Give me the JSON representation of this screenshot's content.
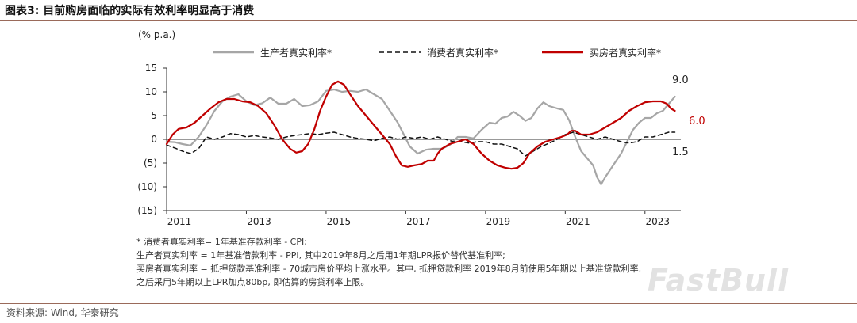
{
  "header": {
    "title": "图表3:   目前购房面临的实际有效利率明显高于消费"
  },
  "notes": [
    "* 消费者真实利率= 1年基准存款利率 - CPI;",
    "  生产者真实利率 = 1年基准借款利率 - PPI, 其中2019年8月之后用1年期LPR报价替代基准利率;",
    "  买房者真实利率 = 抵押贷款基准利率 - 70城市房价平均上涨水平。其中, 抵押贷款利率 2019年8月前使用5年期以上基准贷款利率,",
    "  之后采用5年期以上LPR加点80bp, 即估算的房贷利率上限。"
  ],
  "source": "资料来源: Wind, 华泰研究",
  "watermark": "FastBull",
  "chart_data": {
    "type": "line",
    "unit_label": "(% p.a.)",
    "ylim": [
      -15,
      15
    ],
    "yticks": [
      15,
      10,
      5,
      0,
      -5,
      -10,
      -15
    ],
    "ytick_labels": [
      "15",
      "10",
      "5",
      "0",
      "(5)",
      "(10)",
      "(15)"
    ],
    "xlim": [
      2011,
      2023.9
    ],
    "xticks": [
      2011,
      2013,
      2015,
      2017,
      2019,
      2021,
      2023
    ],
    "xtick_labels": [
      "2011",
      "2013",
      "2015",
      "2017",
      "2019",
      "2021",
      "2023"
    ],
    "legend_position": "top",
    "series": [
      {
        "name": "生产者真实利率*",
        "color": "#a6a6a6",
        "dash": "solid",
        "end_label": "9.0",
        "end_label_color": "#222222",
        "points": [
          [
            2011.0,
            -0.5
          ],
          [
            2011.2,
            -0.6
          ],
          [
            2011.4,
            -1.0
          ],
          [
            2011.6,
            -1.3
          ],
          [
            2011.8,
            0.5
          ],
          [
            2012.0,
            3.0
          ],
          [
            2012.2,
            6.0
          ],
          [
            2012.4,
            8.0
          ],
          [
            2012.6,
            9.0
          ],
          [
            2012.8,
            9.5
          ],
          [
            2013.0,
            8.0
          ],
          [
            2013.2,
            7.2
          ],
          [
            2013.4,
            7.6
          ],
          [
            2013.6,
            8.8
          ],
          [
            2013.8,
            7.5
          ],
          [
            2014.0,
            7.5
          ],
          [
            2014.2,
            8.5
          ],
          [
            2014.4,
            7.0
          ],
          [
            2014.6,
            7.2
          ],
          [
            2014.8,
            8.0
          ],
          [
            2015.0,
            10.2
          ],
          [
            2015.2,
            10.5
          ],
          [
            2015.4,
            10.0
          ],
          [
            2015.6,
            10.2
          ],
          [
            2015.8,
            10.0
          ],
          [
            2016.0,
            10.5
          ],
          [
            2016.2,
            9.5
          ],
          [
            2016.4,
            8.5
          ],
          [
            2016.6,
            6.0
          ],
          [
            2016.8,
            3.5
          ],
          [
            2016.95,
            1.0
          ],
          [
            2017.1,
            -1.5
          ],
          [
            2017.3,
            -3.0
          ],
          [
            2017.5,
            -2.2
          ],
          [
            2017.7,
            -2.0
          ],
          [
            2017.9,
            -2.0
          ],
          [
            2018.1,
            -1.2
          ],
          [
            2018.3,
            0.5
          ],
          [
            2018.5,
            0.5
          ],
          [
            2018.7,
            0.2
          ],
          [
            2018.9,
            2.0
          ],
          [
            2019.1,
            3.5
          ],
          [
            2019.25,
            3.3
          ],
          [
            2019.4,
            4.5
          ],
          [
            2019.55,
            4.8
          ],
          [
            2019.7,
            5.8
          ],
          [
            2019.85,
            5.0
          ],
          [
            2020.0,
            3.9
          ],
          [
            2020.15,
            4.5
          ],
          [
            2020.3,
            6.5
          ],
          [
            2020.45,
            7.8
          ],
          [
            2020.6,
            7.0
          ],
          [
            2020.8,
            6.5
          ],
          [
            2020.95,
            6.2
          ],
          [
            2021.1,
            4.0
          ],
          [
            2021.25,
            0.5
          ],
          [
            2021.4,
            -2.5
          ],
          [
            2021.55,
            -4.0
          ],
          [
            2021.7,
            -5.5
          ],
          [
            2021.8,
            -8.0
          ],
          [
            2021.9,
            -9.5
          ],
          [
            2022.0,
            -8.0
          ],
          [
            2022.2,
            -5.5
          ],
          [
            2022.4,
            -3.0
          ],
          [
            2022.55,
            -0.5
          ],
          [
            2022.7,
            2.0
          ],
          [
            2022.85,
            3.5
          ],
          [
            2023.0,
            4.5
          ],
          [
            2023.15,
            4.5
          ],
          [
            2023.3,
            5.5
          ],
          [
            2023.45,
            6.0
          ],
          [
            2023.6,
            7.5
          ],
          [
            2023.75,
            9.0
          ]
        ]
      },
      {
        "name": "消费者真实利率*",
        "color": "#111111",
        "dash": "dashed",
        "end_label": "1.5",
        "end_label_color": "#222222",
        "points": [
          [
            2011.0,
            -1.2
          ],
          [
            2011.2,
            -1.8
          ],
          [
            2011.4,
            -2.5
          ],
          [
            2011.6,
            -3.0
          ],
          [
            2011.8,
            -2.0
          ],
          [
            2012.0,
            0.5
          ],
          [
            2012.2,
            0.0
          ],
          [
            2012.4,
            0.5
          ],
          [
            2012.6,
            1.2
          ],
          [
            2012.8,
            1.0
          ],
          [
            2013.0,
            0.5
          ],
          [
            2013.2,
            0.8
          ],
          [
            2013.4,
            0.5
          ],
          [
            2013.6,
            0.3
          ],
          [
            2013.8,
            0.0
          ],
          [
            2014.0,
            0.5
          ],
          [
            2014.2,
            0.8
          ],
          [
            2014.4,
            1.0
          ],
          [
            2014.6,
            1.2
          ],
          [
            2014.8,
            1.0
          ],
          [
            2015.0,
            1.3
          ],
          [
            2015.2,
            1.5
          ],
          [
            2015.4,
            1.0
          ],
          [
            2015.6,
            0.5
          ],
          [
            2015.8,
            0.2
          ],
          [
            2016.0,
            0.0
          ],
          [
            2016.2,
            -0.3
          ],
          [
            2016.4,
            0.2
          ],
          [
            2016.6,
            0.5
          ],
          [
            2016.8,
            0.0
          ],
          [
            2017.0,
            0.5
          ],
          [
            2017.2,
            0.2
          ],
          [
            2017.4,
            0.5
          ],
          [
            2017.6,
            0.0
          ],
          [
            2017.8,
            0.5
          ],
          [
            2018.0,
            0.0
          ],
          [
            2018.2,
            -0.5
          ],
          [
            2018.4,
            -0.5
          ],
          [
            2018.6,
            -0.8
          ],
          [
            2018.8,
            -0.5
          ],
          [
            2019.0,
            -0.5
          ],
          [
            2019.2,
            -1.0
          ],
          [
            2019.4,
            -1.0
          ],
          [
            2019.6,
            -1.5
          ],
          [
            2019.8,
            -2.0
          ],
          [
            2020.0,
            -3.5
          ],
          [
            2020.2,
            -2.5
          ],
          [
            2020.4,
            -1.5
          ],
          [
            2020.6,
            -0.8
          ],
          [
            2020.8,
            0.0
          ],
          [
            2021.0,
            1.0
          ],
          [
            2021.2,
            1.5
          ],
          [
            2021.4,
            1.0
          ],
          [
            2021.6,
            0.5
          ],
          [
            2021.8,
            0.0
          ],
          [
            2022.0,
            0.5
          ],
          [
            2022.2,
            0.0
          ],
          [
            2022.4,
            -0.5
          ],
          [
            2022.6,
            -0.8
          ],
          [
            2022.8,
            -0.5
          ],
          [
            2023.0,
            0.5
          ],
          [
            2023.2,
            0.5
          ],
          [
            2023.4,
            1.0
          ],
          [
            2023.6,
            1.5
          ],
          [
            2023.75,
            1.5
          ]
        ]
      },
      {
        "name": "买房者真实利率*",
        "color": "#c00000",
        "dash": "solid",
        "end_label": "6.0",
        "end_label_color": "#c00000",
        "points": [
          [
            2011.0,
            -1.0
          ],
          [
            2011.15,
            1.0
          ],
          [
            2011.3,
            2.2
          ],
          [
            2011.5,
            2.5
          ],
          [
            2011.7,
            3.5
          ],
          [
            2011.9,
            5.0
          ],
          [
            2012.1,
            6.5
          ],
          [
            2012.3,
            7.8
          ],
          [
            2012.5,
            8.5
          ],
          [
            2012.7,
            8.5
          ],
          [
            2012.9,
            8.0
          ],
          [
            2013.1,
            7.8
          ],
          [
            2013.3,
            7.0
          ],
          [
            2013.5,
            5.5
          ],
          [
            2013.7,
            3.0
          ],
          [
            2013.9,
            0.0
          ],
          [
            2014.1,
            -2.0
          ],
          [
            2014.25,
            -2.8
          ],
          [
            2014.4,
            -2.5
          ],
          [
            2014.55,
            -1.0
          ],
          [
            2014.7,
            2.0
          ],
          [
            2014.85,
            6.0
          ],
          [
            2015.0,
            9.0
          ],
          [
            2015.15,
            11.5
          ],
          [
            2015.3,
            12.2
          ],
          [
            2015.45,
            11.5
          ],
          [
            2015.6,
            9.5
          ],
          [
            2015.8,
            7.0
          ],
          [
            2016.0,
            5.0
          ],
          [
            2016.2,
            3.0
          ],
          [
            2016.4,
            1.0
          ],
          [
            2016.6,
            -1.0
          ],
          [
            2016.75,
            -3.5
          ],
          [
            2016.9,
            -5.5
          ],
          [
            2017.05,
            -5.8
          ],
          [
            2017.2,
            -5.5
          ],
          [
            2017.4,
            -5.2
          ],
          [
            2017.55,
            -4.5
          ],
          [
            2017.7,
            -4.5
          ],
          [
            2017.8,
            -3.0
          ],
          [
            2017.9,
            -2.0
          ],
          [
            2018.1,
            -1.0
          ],
          [
            2018.3,
            -0.5
          ],
          [
            2018.5,
            0.0
          ],
          [
            2018.7,
            -1.0
          ],
          [
            2018.9,
            -3.0
          ],
          [
            2019.1,
            -4.5
          ],
          [
            2019.3,
            -5.5
          ],
          [
            2019.5,
            -6.0
          ],
          [
            2019.65,
            -6.2
          ],
          [
            2019.8,
            -6.0
          ],
          [
            2019.95,
            -5.0
          ],
          [
            2020.1,
            -3.0
          ],
          [
            2020.3,
            -1.5
          ],
          [
            2020.5,
            -0.5
          ],
          [
            2020.7,
            0.0
          ],
          [
            2020.9,
            0.5
          ],
          [
            2021.05,
            1.0
          ],
          [
            2021.15,
            1.8
          ],
          [
            2021.25,
            1.8
          ],
          [
            2021.4,
            1.0
          ],
          [
            2021.6,
            1.0
          ],
          [
            2021.8,
            1.5
          ],
          [
            2022.0,
            2.5
          ],
          [
            2022.2,
            3.5
          ],
          [
            2022.4,
            4.5
          ],
          [
            2022.6,
            6.0
          ],
          [
            2022.8,
            7.0
          ],
          [
            2023.0,
            7.8
          ],
          [
            2023.2,
            8.0
          ],
          [
            2023.4,
            8.0
          ],
          [
            2023.55,
            7.5
          ],
          [
            2023.65,
            6.5
          ],
          [
            2023.75,
            6.0
          ]
        ]
      }
    ]
  }
}
